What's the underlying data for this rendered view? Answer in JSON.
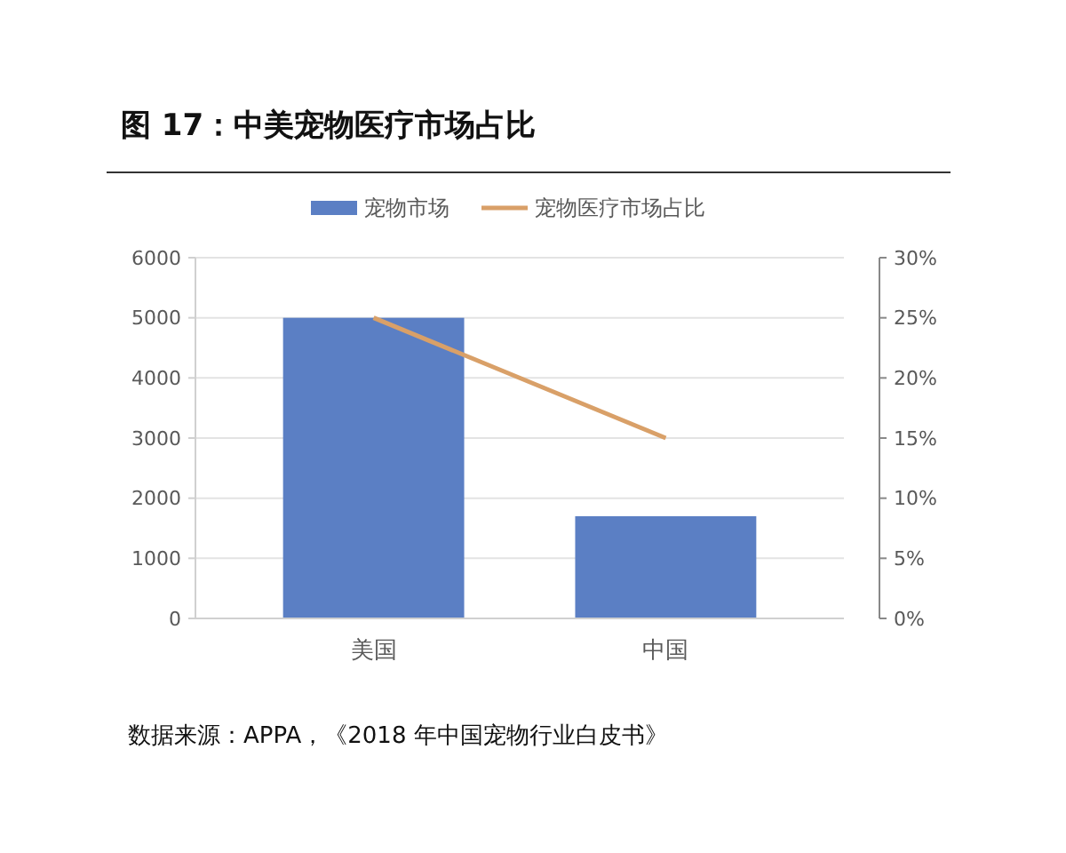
{
  "chart_data": {
    "type": "bar",
    "title": "图 17：中美宠物医疗市场占比",
    "categories": [
      "美国",
      "中国"
    ],
    "series": [
      {
        "name": "宠物市场",
        "color": "#5b7fc4",
        "values": [
          5000,
          1700
        ]
      },
      {
        "name": "宠物医疗市场占比",
        "type": "line",
        "axis": "y2",
        "color": "#d9a068",
        "values": [
          25,
          15
        ]
      }
    ],
    "ylim": [
      0,
      6000
    ],
    "yticks": [
      0,
      1000,
      2000,
      3000,
      4000,
      5000,
      6000
    ],
    "y2lim": [
      0,
      30
    ],
    "y2ticks": [
      {
        "value": 0,
        "label": "0%"
      },
      {
        "value": 5,
        "label": "5%"
      },
      {
        "value": 10,
        "label": "10%"
      },
      {
        "value": 15,
        "label": "15%"
      },
      {
        "value": 20,
        "label": "20%"
      },
      {
        "value": 25,
        "label": "25%"
      },
      {
        "value": 30,
        "label": "30%"
      }
    ],
    "grid": "y",
    "legend": "top",
    "marker": "none",
    "line_style": "solid",
    "annotations": [
      "数据来源：APPA，《2018 年中国宠物行业白皮书》"
    ]
  }
}
